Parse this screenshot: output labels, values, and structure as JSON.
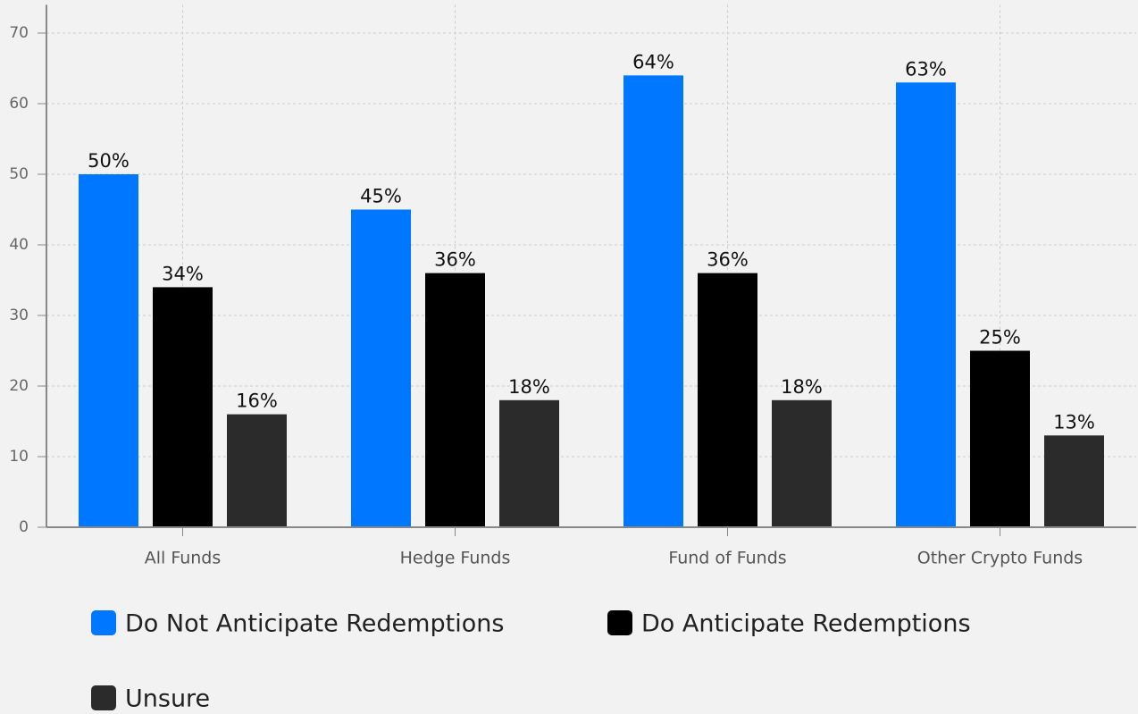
{
  "chart_data": {
    "type": "bar",
    "categories": [
      "All Funds",
      "Hedge Funds",
      "Fund of Funds",
      "Other Crypto Funds"
    ],
    "series": [
      {
        "name": "Do Not Anticipate Redemptions",
        "color": "#0077ff",
        "values": [
          50,
          45,
          64,
          63
        ],
        "value_labels": [
          "50%",
          "45%",
          "64%",
          "63%"
        ]
      },
      {
        "name": "Do Anticipate Redemptions",
        "color": "#000000",
        "values": [
          34,
          36,
          36,
          25
        ],
        "value_labels": [
          "34%",
          "36%",
          "36%",
          "25%"
        ]
      },
      {
        "name": "Unsure",
        "color": "#2b2b2b",
        "values": [
          16,
          18,
          18,
          13
        ],
        "value_labels": [
          "16%",
          "18%",
          "18%",
          "13%"
        ]
      }
    ],
    "ylim": [
      0,
      74
    ],
    "yticks": [
      0,
      10,
      20,
      30,
      40,
      50,
      60,
      70
    ],
    "grid": true,
    "legend": "bottom"
  }
}
